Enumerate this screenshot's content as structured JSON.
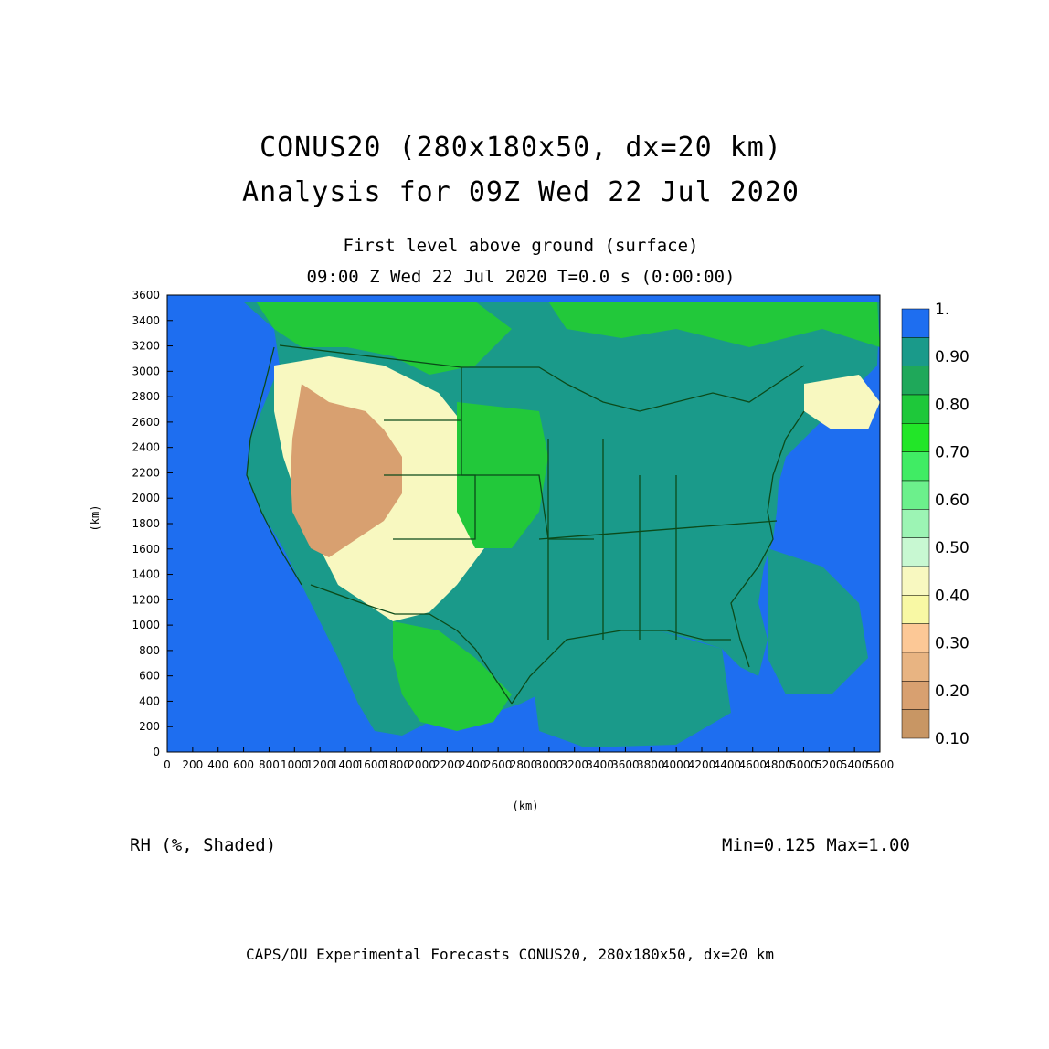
{
  "title": {
    "line1": "CONUS20 (280x180x50, dx=20 km)",
    "line2": "Analysis for 09Z Wed 22 Jul 2020"
  },
  "subtitle": {
    "level": "First level above ground (surface)",
    "time": "09:00 Z Wed 22 Jul 2020   T=0.0 s (0:00:00)"
  },
  "axes": {
    "x_label": "(km)",
    "y_label": "(km)",
    "x_ticks": [
      "0",
      "200",
      "400",
      "600",
      "800",
      "1000",
      "1200",
      "1400",
      "1600",
      "1800",
      "2000",
      "2200",
      "2400",
      "2600",
      "2800",
      "3000",
      "3200",
      "3400",
      "3600",
      "3800",
      "4000",
      "4200",
      "4400",
      "4600",
      "4800",
      "5000",
      "5200",
      "5400",
      "5600"
    ],
    "y_ticks": [
      "0",
      "200",
      "400",
      "600",
      "800",
      "1000",
      "1200",
      "1400",
      "1600",
      "1800",
      "2000",
      "2200",
      "2400",
      "2600",
      "2800",
      "3000",
      "3200",
      "3400",
      "3600"
    ],
    "x_range": [
      0,
      5600
    ],
    "y_range": [
      0,
      3600
    ]
  },
  "colorbar": {
    "labels": [
      "1.",
      "0.90",
      "0.80",
      "0.70",
      "0.60",
      "0.50",
      "0.40",
      "0.30",
      "0.20",
      "0.10"
    ],
    "colors": [
      "#1e6ef0",
      "#1a9a8a",
      "#1fa85a",
      "#1ec83a",
      "#22e628",
      "#40ec64",
      "#6cf08c",
      "#9cf4b4",
      "#c8f8d2",
      "#f8f8c0",
      "#f8f8a4",
      "#fcc896",
      "#e8b482",
      "#d8a070",
      "#c89664"
    ]
  },
  "variable": "RH (%, Shaded)",
  "stats": "Min=0.125  Max=1.00",
  "footer": "CAPS/OU Experimental Forecasts  CONUS20, 280x180x50, dx=20 km",
  "map_colors": {
    "ocean": "#1e6ef0",
    "land_moist": "#1a9a8a",
    "land_green": "#22c83a",
    "dry": "#d8a070",
    "semi": "#f8f8c0",
    "boundaries": "#0b4a1a"
  }
}
